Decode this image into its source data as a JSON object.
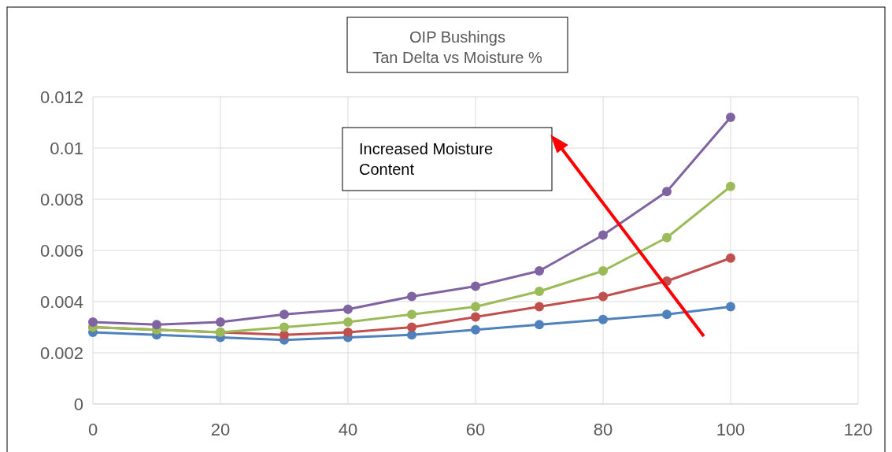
{
  "chart_data": {
    "type": "line",
    "title": "OIP Bushings",
    "subtitle": "Tan Delta vs Moisture %",
    "x": [
      0,
      10,
      20,
      30,
      40,
      50,
      60,
      70,
      80,
      90,
      100
    ],
    "series": [
      {
        "color": "#4f81bd",
        "values": [
          0.0028,
          0.0027,
          0.0026,
          0.0025,
          0.0026,
          0.0027,
          0.0029,
          0.0031,
          0.0033,
          0.0035,
          0.0038
        ]
      },
      {
        "color": "#c0504d",
        "values": [
          0.003,
          0.0029,
          0.0028,
          0.0027,
          0.0028,
          0.003,
          0.0034,
          0.0038,
          0.0042,
          0.0048,
          0.0057
        ]
      },
      {
        "color": "#9bbb59",
        "values": [
          0.003,
          0.0029,
          0.0028,
          0.003,
          0.0032,
          0.0035,
          0.0038,
          0.0044,
          0.0052,
          0.0065,
          0.0085
        ]
      },
      {
        "color": "#8064a2",
        "values": [
          0.0032,
          0.0031,
          0.0032,
          0.0035,
          0.0037,
          0.0042,
          0.0046,
          0.0052,
          0.0066,
          0.0083,
          0.0112
        ]
      }
    ],
    "xlim": [
      0,
      120
    ],
    "xticks": [
      0,
      20,
      40,
      60,
      80,
      100,
      120
    ],
    "ylim": [
      0,
      0.012
    ],
    "yticks": [
      0,
      0.002,
      0.004,
      0.006,
      0.008,
      0.01,
      0.012
    ],
    "grid": true,
    "marker": "circle",
    "line_style": "solid",
    "annotations": [
      "Increased Moisture Content"
    ]
  }
}
